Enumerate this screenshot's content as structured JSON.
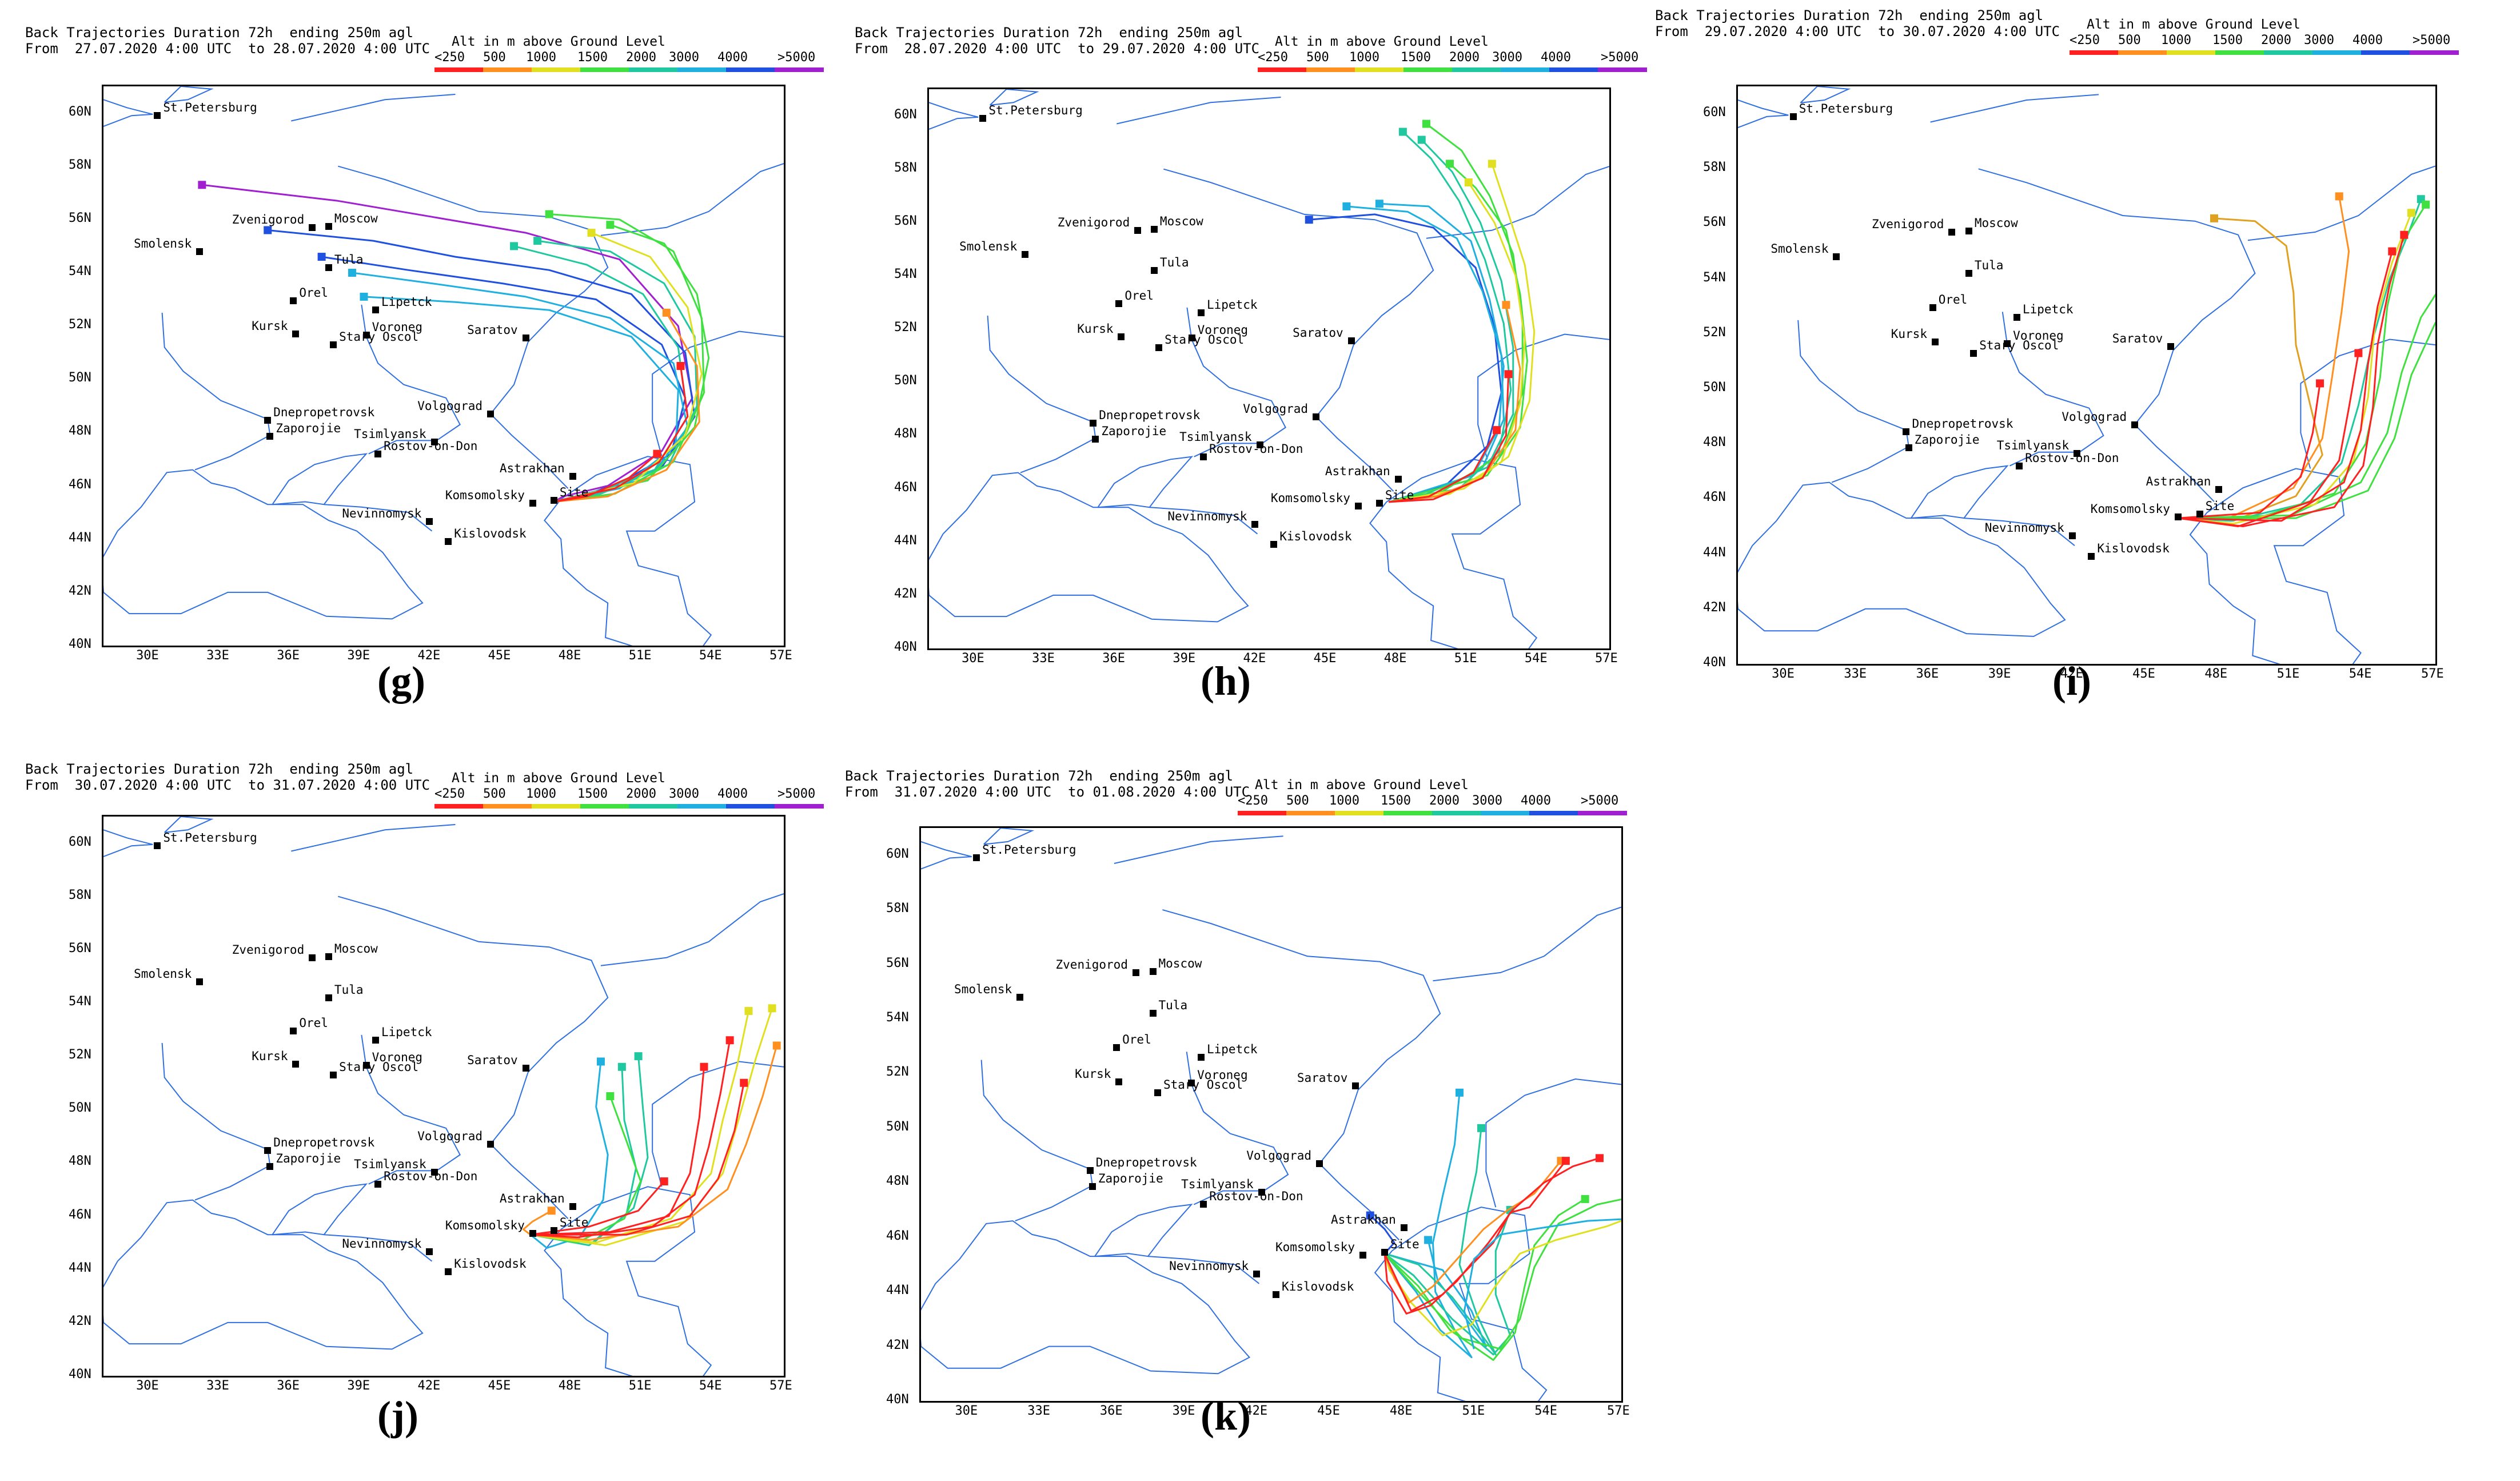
{
  "header": {
    "line1_prefix": "Back Trajectories Duration 72h  ending 250m agl",
    "from_label": "From",
    "to_label": "to",
    "alt_title": "Alt in m above Ground Level",
    "alt_levels": [
      "<250",
      "500",
      "1000",
      "1500",
      "2000",
      "3000",
      "4000",
      ">5000"
    ],
    "alt_colors": [
      "#ff2020",
      "#ff9020",
      "#e0e020",
      "#40e040",
      "#20c8a0",
      "#20b0e0",
      "#2050e0",
      "#a020d0"
    ]
  },
  "axes": {
    "lat_labels": [
      "60N",
      "58N",
      "56N",
      "54N",
      "52N",
      "50N",
      "48N",
      "46N",
      "44N",
      "42N",
      "40N"
    ],
    "lon_labels": [
      "30E",
      "33E",
      "36E",
      "39E",
      "42E",
      "45E",
      "48E",
      "51E",
      "54E",
      "57E"
    ],
    "lat_range": [
      40,
      61
    ],
    "lon_range": [
      28,
      57
    ]
  },
  "colors": {
    "coast": "#3070e0",
    "frame": "#000000"
  },
  "cities": [
    {
      "name": "St.Petersburg",
      "lon": 30.3,
      "lat": 59.9
    },
    {
      "name": "Moscow",
      "lon": 37.6,
      "lat": 55.75
    },
    {
      "name": "Zvenigorod",
      "lon": 36.9,
      "lat": 55.7
    },
    {
      "name": "Smolensk",
      "lon": 32.1,
      "lat": 54.8
    },
    {
      "name": "Tula",
      "lon": 37.6,
      "lat": 54.2
    },
    {
      "name": "Orel",
      "lon": 36.1,
      "lat": 52.95
    },
    {
      "name": "Lipetck",
      "lon": 39.6,
      "lat": 52.6
    },
    {
      "name": "Kursk",
      "lon": 36.2,
      "lat": 51.7
    },
    {
      "name": "Voroneg",
      "lon": 39.2,
      "lat": 51.65
    },
    {
      "name": "Stary Oscol",
      "lon": 37.8,
      "lat": 51.3
    },
    {
      "name": "Saratov",
      "lon": 46.0,
      "lat": 51.55
    },
    {
      "name": "Dnepropetrovsk",
      "lon": 35.0,
      "lat": 48.45
    },
    {
      "name": "Zaporojie",
      "lon": 35.1,
      "lat": 47.85
    },
    {
      "name": "Volgograd",
      "lon": 44.5,
      "lat": 48.7
    },
    {
      "name": "Tsimlyansk",
      "lon": 42.1,
      "lat": 47.65
    },
    {
      "name": "Rostov-on-Don",
      "lon": 39.7,
      "lat": 47.2
    },
    {
      "name": "Astrakhan",
      "lon": 48.0,
      "lat": 46.35
    },
    {
      "name": "Komsomolsky",
      "lon": 46.3,
      "lat": 45.35
    },
    {
      "name": "Site",
      "lon": 47.2,
      "lat": 45.45
    },
    {
      "name": "Nevinnomysk",
      "lon": 41.9,
      "lat": 44.65
    },
    {
      "name": "Kislovodsk",
      "lon": 42.7,
      "lat": 43.9
    }
  ],
  "panels": [
    {
      "label": "(g)",
      "from": "27.07.2020 4:00 UTC",
      "to": "28.07.2020 4:00 UTC"
    },
    {
      "label": "(h)",
      "from": "28.07.2020 4:00 UTC",
      "to": "29.07.2020 4:00 UTC"
    },
    {
      "label": "(i)",
      "from": "29.07.2020 4:00 UTC",
      "to": "30.07.2020 4:00 UTC"
    },
    {
      "label": "(j)",
      "from": "30.07.2020 4:00 UTC",
      "to": "31.07.2020 4:00 UTC"
    },
    {
      "label": "(k)",
      "from": "31.07.2020 4:00 UTC",
      "to": "01.08.2020 4:00 UTC"
    }
  ]
}
